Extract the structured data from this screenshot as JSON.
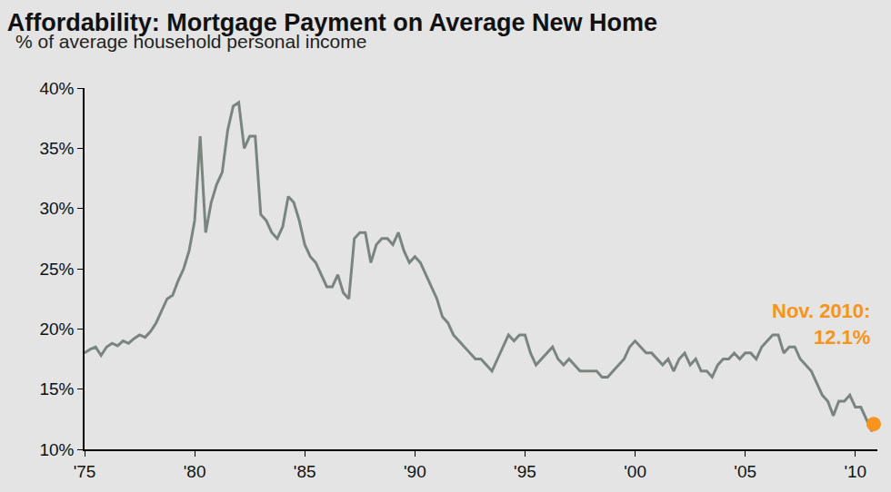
{
  "chart_data": {
    "type": "line",
    "title": "Affordability: Mortgage Payment on Average New Home",
    "subtitle": "% of average household personal income",
    "x": [
      1975,
      1975.25,
      1975.5,
      1975.75,
      1976,
      1976.25,
      1976.5,
      1976.75,
      1977,
      1977.25,
      1977.5,
      1977.75,
      1978,
      1978.25,
      1978.5,
      1978.75,
      1979,
      1979.25,
      1979.5,
      1979.75,
      1980,
      1980.25,
      1980.5,
      1980.75,
      1981,
      1981.25,
      1981.5,
      1981.75,
      1982,
      1982.25,
      1982.5,
      1982.75,
      1983,
      1983.25,
      1983.5,
      1983.75,
      1984,
      1984.25,
      1984.5,
      1984.75,
      1985,
      1985.25,
      1985.5,
      1985.75,
      1986,
      1986.25,
      1986.5,
      1986.75,
      1987,
      1987.25,
      1987.5,
      1987.75,
      1988,
      1988.25,
      1988.5,
      1988.75,
      1989,
      1989.25,
      1989.5,
      1989.75,
      1990,
      1990.25,
      1990.5,
      1990.75,
      1991,
      1991.25,
      1991.5,
      1991.75,
      1992,
      1992.25,
      1992.5,
      1992.75,
      1993,
      1993.25,
      1993.5,
      1993.75,
      1994,
      1994.25,
      1994.5,
      1994.75,
      1995,
      1995.25,
      1995.5,
      1995.75,
      1996,
      1996.25,
      1996.5,
      1996.75,
      1997,
      1997.25,
      1997.5,
      1997.75,
      1998,
      1998.25,
      1998.5,
      1998.75,
      1999,
      1999.25,
      1999.5,
      1999.75,
      2000,
      2000.25,
      2000.5,
      2000.75,
      2001,
      2001.25,
      2001.5,
      2001.75,
      2002,
      2002.25,
      2002.5,
      2002.75,
      2003,
      2003.25,
      2003.5,
      2003.75,
      2004,
      2004.25,
      2004.5,
      2004.75,
      2005,
      2005.25,
      2005.5,
      2005.75,
      2006,
      2006.25,
      2006.5,
      2006.75,
      2007,
      2007.25,
      2007.5,
      2007.75,
      2008,
      2008.25,
      2008.5,
      2008.75,
      2009,
      2009.25,
      2009.5,
      2009.75,
      2010,
      2010.25,
      2010.5,
      2010.75,
      2010.833
    ],
    "series": [
      {
        "name": "Mortgage payment on average new home",
        "color": "#7a8580",
        "values": [
          18,
          18.3,
          18.5,
          17.8,
          18.5,
          18.8,
          18.6,
          19,
          18.8,
          19.2,
          19.5,
          19.3,
          19.8,
          20.5,
          21.5,
          22.5,
          22.8,
          24,
          25,
          26.5,
          29,
          36,
          28,
          30.5,
          32,
          33,
          36.5,
          38.5,
          38.8,
          35,
          36,
          36,
          29.5,
          29,
          28,
          27.5,
          28.5,
          31,
          30.5,
          29,
          27,
          26,
          25.5,
          24.5,
          23.5,
          23.5,
          24.5,
          23,
          22.5,
          27.5,
          28,
          28,
          25.5,
          27,
          27.5,
          27.5,
          27,
          28,
          26.5,
          25.5,
          26,
          25.5,
          24.5,
          23.5,
          22.5,
          21,
          20.5,
          19.5,
          19,
          18.5,
          18,
          17.5,
          17.5,
          17,
          16.5,
          17.5,
          18.5,
          19.5,
          19,
          19.5,
          19.5,
          18,
          17,
          17.5,
          18,
          18.5,
          17.5,
          17,
          17.5,
          17,
          16.5,
          16.5,
          16.5,
          16.5,
          16,
          16,
          16.5,
          17,
          17.5,
          18.5,
          19,
          18.5,
          18,
          18,
          17.5,
          17,
          17.5,
          16.5,
          17.5,
          18,
          17,
          17.5,
          16.5,
          16.5,
          16,
          17,
          17.5,
          17.5,
          18,
          17.5,
          18,
          18,
          17.5,
          18.5,
          19,
          19.5,
          19.5,
          18,
          18.5,
          18.5,
          17.5,
          17,
          16.5,
          15.5,
          14.5,
          14,
          12.8,
          14,
          14,
          14.5,
          13.5,
          13.5,
          12.5,
          11.5,
          12.1
        ]
      }
    ],
    "annotations": [
      {
        "text": [
          "Nov. 2010:",
          "12.1%"
        ],
        "x": 2010.833,
        "y": 12.1,
        "color": "#f7941d"
      }
    ],
    "xlim": [
      1975,
      2011
    ],
    "xticks": [
      {
        "value": 1975,
        "label": "'75"
      },
      {
        "value": 1980,
        "label": "'80"
      },
      {
        "value": 1985,
        "label": "'85"
      },
      {
        "value": 1990,
        "label": "'90"
      },
      {
        "value": 1995,
        "label": "'95"
      },
      {
        "value": 2000,
        "label": "'00"
      },
      {
        "value": 2005,
        "label": "'05"
      },
      {
        "value": 2010,
        "label": "'10"
      }
    ],
    "ylim": [
      10,
      40
    ],
    "yticks": [
      {
        "value": 10,
        "label": "10%"
      },
      {
        "value": 15,
        "label": "15%"
      },
      {
        "value": 20,
        "label": "20%"
      },
      {
        "value": 25,
        "label": "25%"
      },
      {
        "value": 30,
        "label": "30%"
      },
      {
        "value": 35,
        "label": "35%"
      },
      {
        "value": 40,
        "label": "40%"
      }
    ],
    "grid": false
  }
}
